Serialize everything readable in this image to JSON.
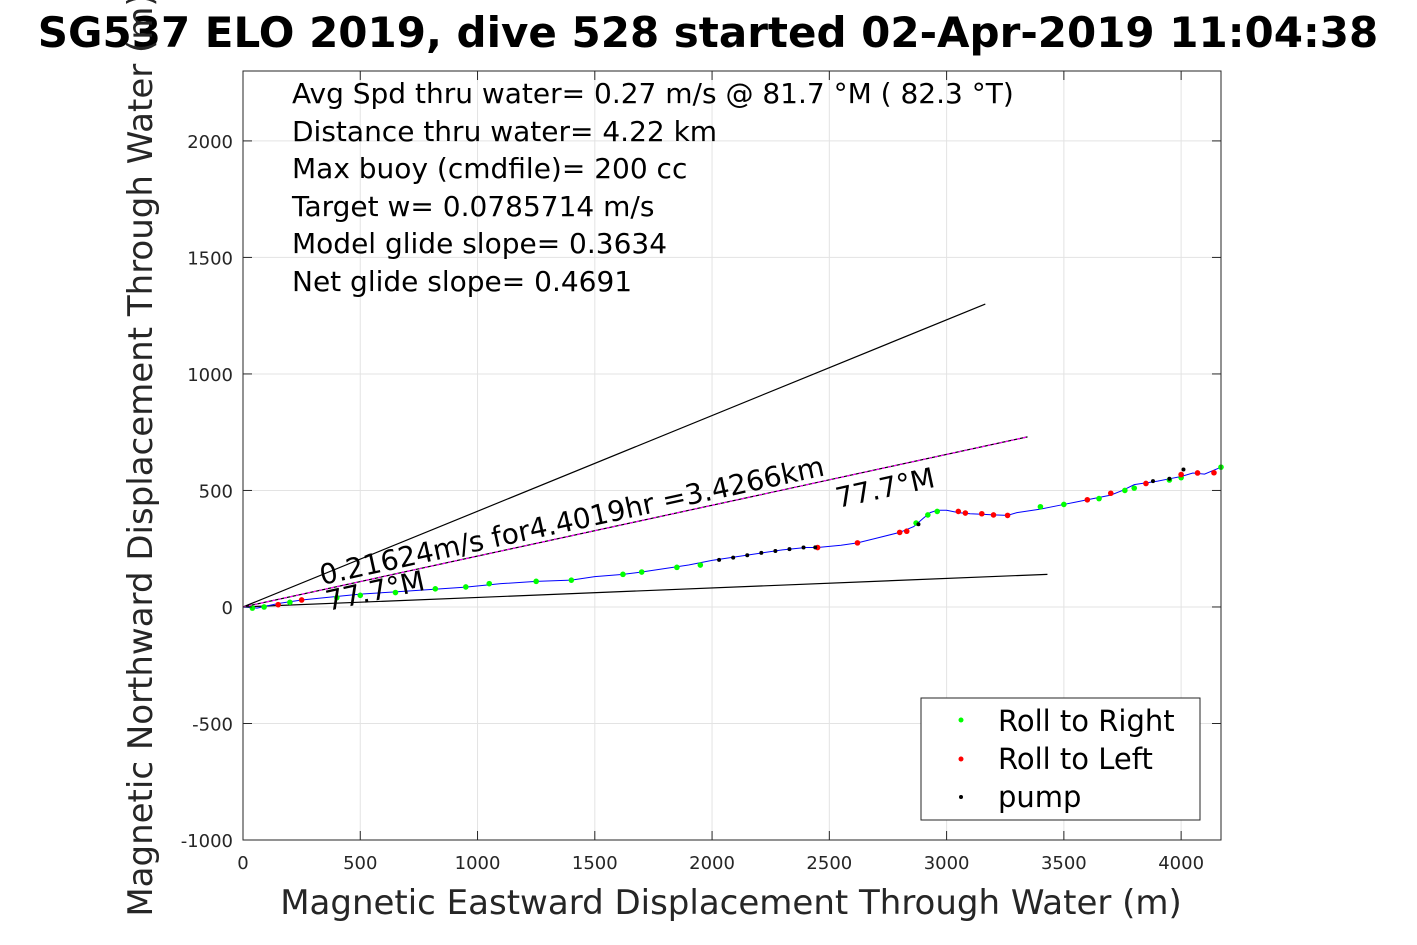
{
  "chart_data": {
    "type": "line",
    "title": "SG537 ELO 2019, dive 528 started 02-Apr-2019 11:04:38",
    "xlabel": "Magnetic Eastward Displacement Through Water (m)",
    "ylabel": "Magnetic Northward Displacement Through Water (m)",
    "xlim": [
      0,
      4170
    ],
    "ylim": [
      -1000,
      2300
    ],
    "xticks": [
      0,
      500,
      1000,
      1500,
      2000,
      2500,
      3000,
      3500,
      4000
    ],
    "yticks": [
      -1000,
      -500,
      0,
      500,
      1000,
      1500,
      2000
    ],
    "grid": true,
    "legend_position": "bottom-right",
    "annotations": [
      "Avg Spd thru water=  0.27 m/s @  81.7 °M ( 82.3 °T)",
      "Distance thru water=  4.22 km",
      "Max buoy (cmdfile)= 200 cc",
      "Target w= 0.0785714 m/s",
      "Model glide slope= 0.3634",
      "Net glide slope= 0.4691"
    ],
    "heading_label_upper": "77.7°M",
    "heading_label_lower": "77.7°M",
    "course_label": "0.21624m/s for4.4019hr =3.4266km",
    "legend": [
      "Roll to Right",
      "Roll to Left",
      "pump"
    ],
    "colors": {
      "track": "#0000ff",
      "roll_right": "#00ff00",
      "roll_left": "#ff0000",
      "pump": "#000000",
      "course": "#ff00ff",
      "cone": "#000000"
    },
    "reference_lines": {
      "cone_upper": {
        "x": [
          0,
          3165
        ],
        "y": [
          0,
          1300
        ]
      },
      "course": {
        "x": [
          0,
          3345
        ],
        "y": [
          0,
          730
        ]
      },
      "cone_lower": {
        "x": [
          0,
          3430
        ],
        "y": [
          0,
          140
        ]
      }
    },
    "series": [
      {
        "name": "track",
        "x": [
          0,
          60,
          150,
          250,
          350,
          500,
          650,
          800,
          950,
          1100,
          1250,
          1400,
          1500,
          1620,
          1700,
          1800,
          1900,
          2000,
          2100,
          2200,
          2300,
          2400,
          2450,
          2550,
          2620,
          2700,
          2800,
          2860,
          2900,
          2930,
          2960,
          3000,
          3050,
          3100,
          3150,
          3200,
          3260,
          3300,
          3400,
          3500,
          3550,
          3600,
          3700,
          3750,
          3800,
          3900,
          3950,
          4000,
          4050,
          4100,
          4170
        ],
        "y": [
          0,
          -5,
          15,
          30,
          40,
          55,
          65,
          75,
          85,
          100,
          110,
          115,
          130,
          140,
          150,
          165,
          180,
          200,
          215,
          230,
          245,
          255,
          255,
          265,
          275,
          295,
          320,
          345,
          380,
          405,
          415,
          415,
          405,
          400,
          398,
          395,
          393,
          405,
          420,
          440,
          450,
          460,
          480,
          500,
          525,
          540,
          550,
          560,
          575,
          570,
          600
        ]
      },
      {
        "name": "Roll to Right",
        "x": [
          40,
          90,
          200,
          400,
          500,
          650,
          820,
          950,
          1050,
          1250,
          1400,
          1620,
          1700,
          1850,
          1950,
          2870,
          2920,
          2960,
          3400,
          3500,
          3650,
          3760,
          3800,
          3950,
          4000,
          4170
        ],
        "y": [
          -5,
          0,
          20,
          40,
          50,
          62,
          78,
          86,
          100,
          110,
          115,
          140,
          150,
          170,
          180,
          360,
          395,
          410,
          430,
          440,
          465,
          500,
          510,
          545,
          555,
          600
        ]
      },
      {
        "name": "Roll to Left",
        "x": [
          150,
          250,
          2450,
          2620,
          2800,
          2830,
          3050,
          3080,
          3150,
          3200,
          3260,
          3600,
          3700,
          3850,
          4000,
          4070,
          4140
        ],
        "y": [
          10,
          30,
          255,
          275,
          320,
          325,
          410,
          403,
          400,
          395,
          393,
          460,
          488,
          530,
          568,
          575,
          576
        ]
      },
      {
        "name": "pump",
        "x": [
          2030,
          2090,
          2150,
          2210,
          2270,
          2330,
          2390,
          2440,
          2880,
          3880,
          3950,
          4010
        ],
        "y": [
          202,
          212,
          222,
          232,
          240,
          248,
          255,
          256,
          355,
          540,
          550,
          590
        ]
      }
    ]
  }
}
